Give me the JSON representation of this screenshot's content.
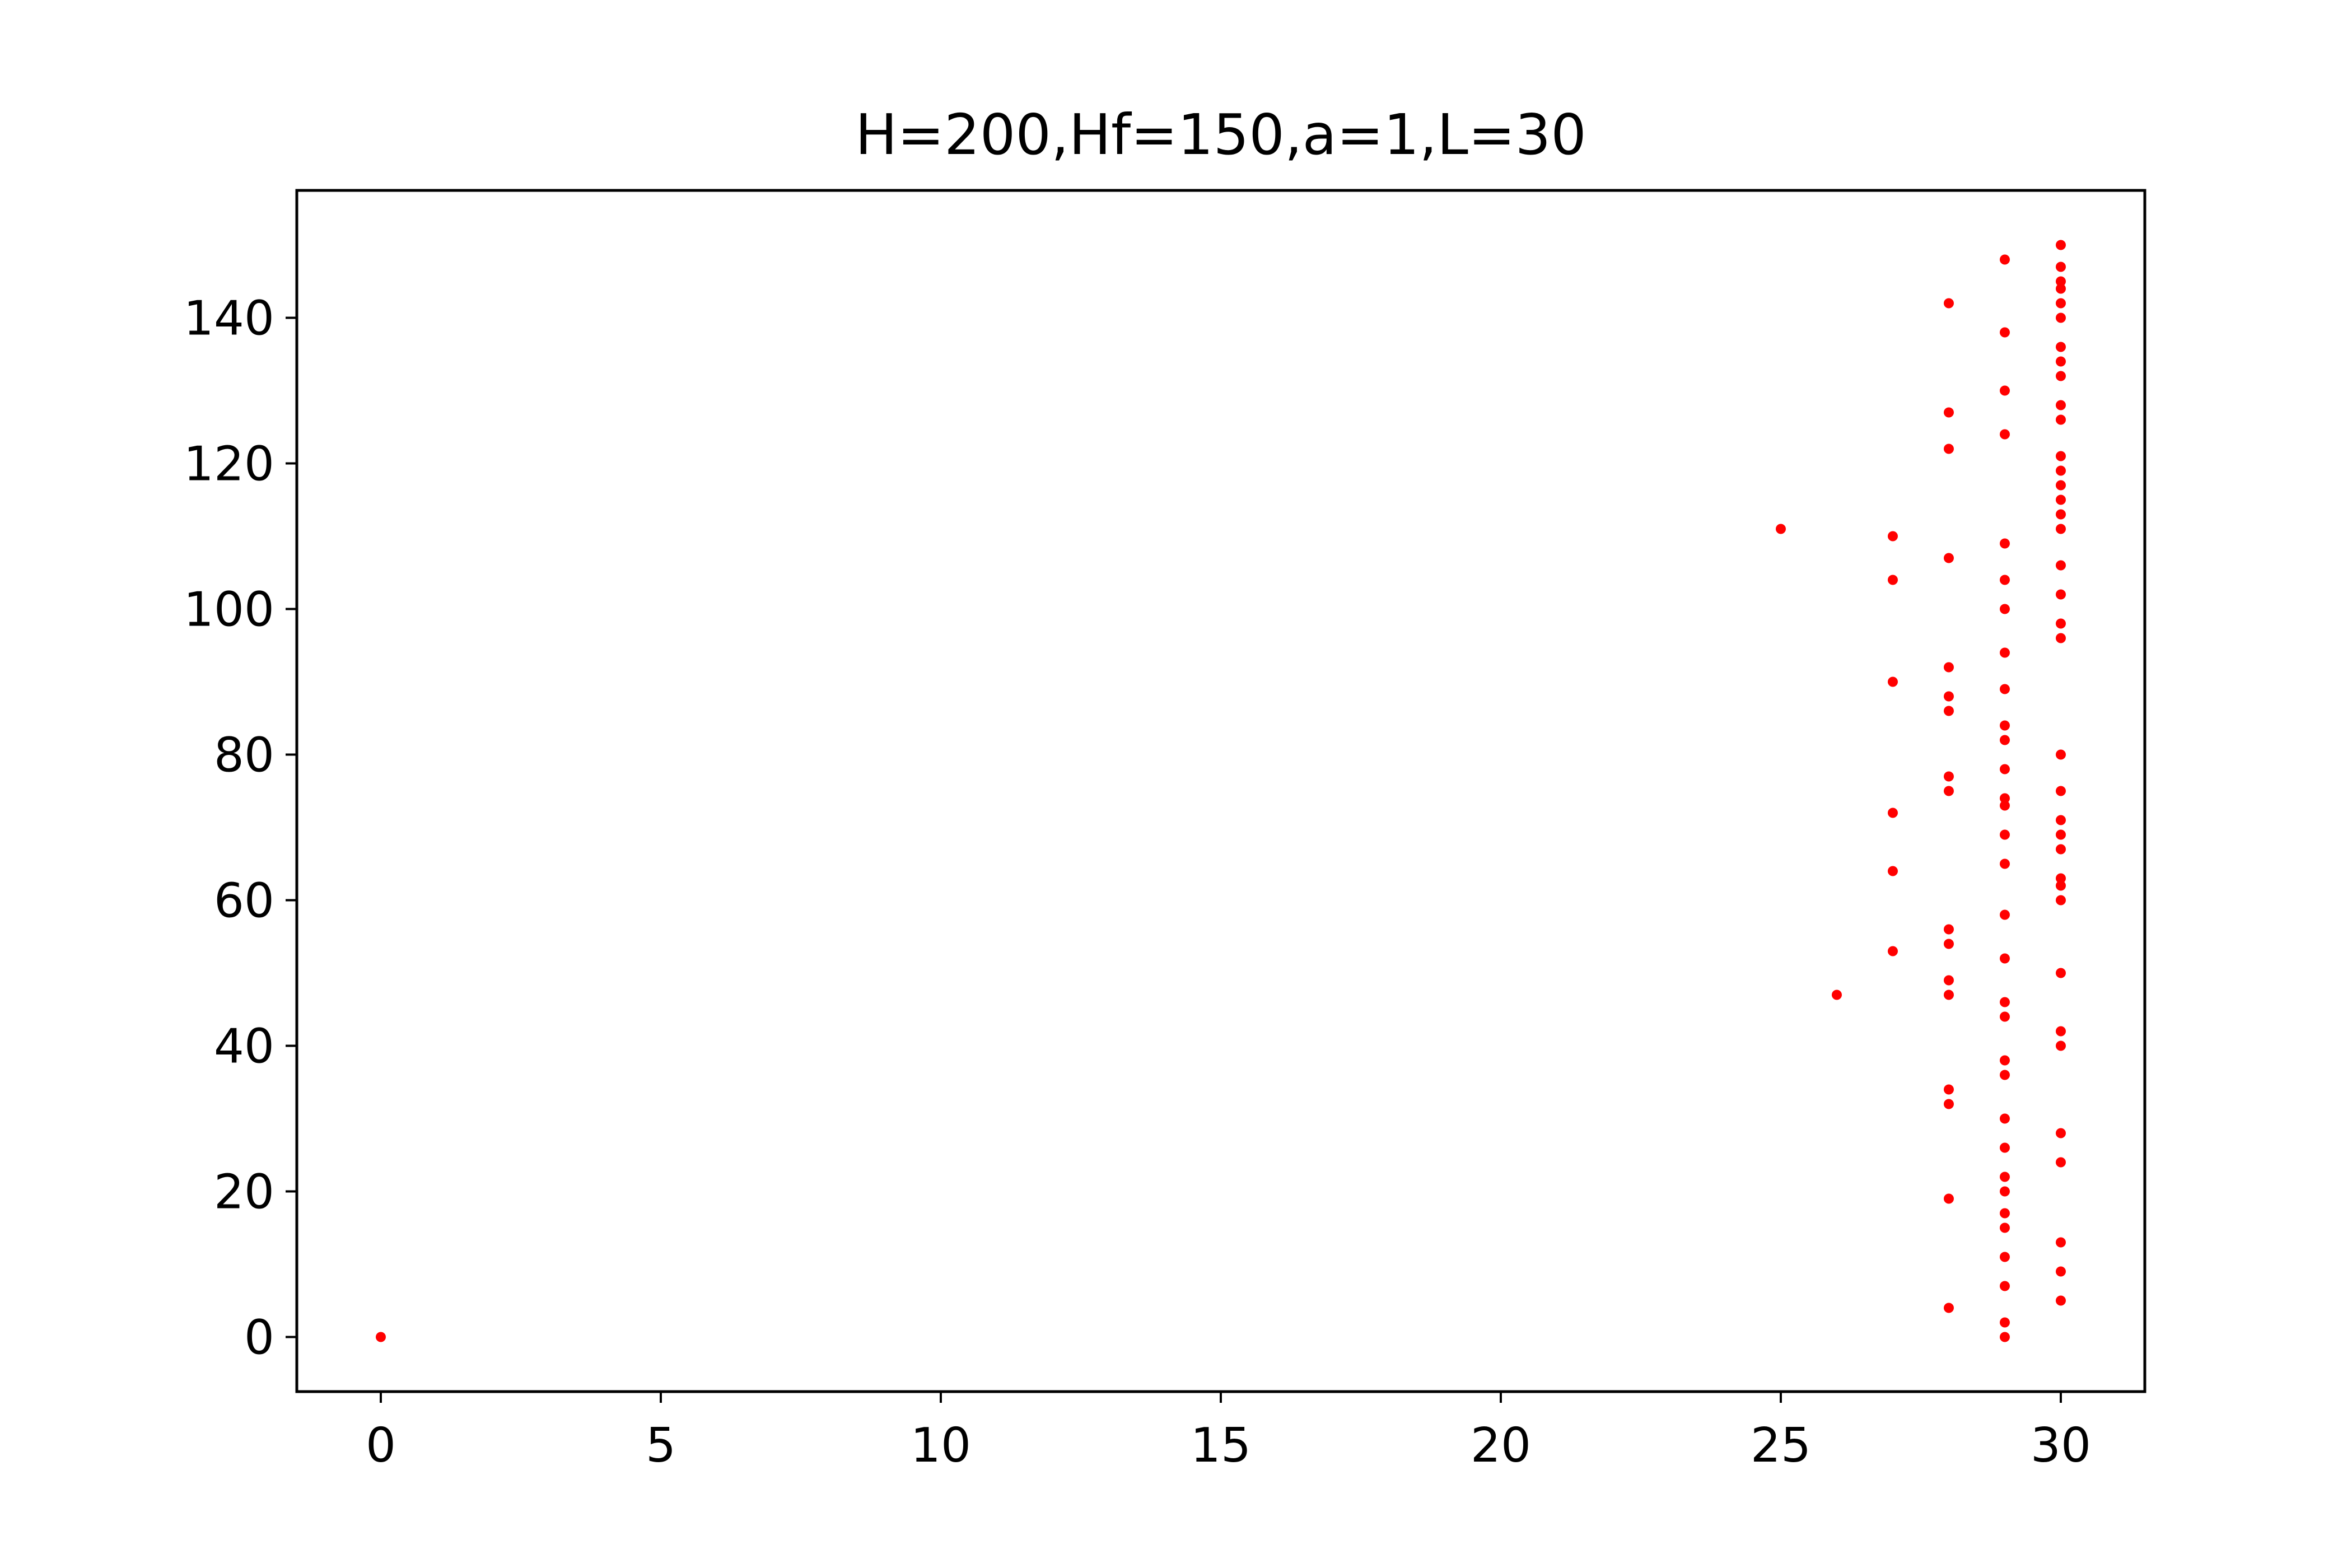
{
  "chart_data": {
    "type": "scatter",
    "title": "H=200,Hf=150,a=1,L=30",
    "xlabel": "",
    "ylabel": "",
    "xlim": [
      -1.5,
      31.5
    ],
    "ylim": [
      -7.5,
      157.5
    ],
    "xticks": [
      0,
      5,
      10,
      15,
      20,
      25,
      30
    ],
    "yticks": [
      0,
      20,
      40,
      60,
      80,
      100,
      120,
      140
    ],
    "grid": false,
    "marker_color": "#ff0000",
    "series": [
      {
        "points": [
          [
            0,
            0
          ],
          [
            25,
            111
          ],
          [
            26,
            47
          ],
          [
            27,
            110
          ],
          [
            27,
            104
          ],
          [
            27,
            90
          ],
          [
            27,
            72
          ],
          [
            27,
            64
          ],
          [
            27,
            53
          ],
          [
            28,
            142
          ],
          [
            28,
            127
          ],
          [
            28,
            122
          ],
          [
            28,
            107
          ],
          [
            28,
            92
          ],
          [
            28,
            88
          ],
          [
            28,
            86
          ],
          [
            28,
            77
          ],
          [
            28,
            75
          ],
          [
            28,
            56
          ],
          [
            28,
            54
          ],
          [
            28,
            49
          ],
          [
            28,
            47
          ],
          [
            28,
            34
          ],
          [
            28,
            32
          ],
          [
            28,
            19
          ],
          [
            28,
            4
          ],
          [
            29,
            148
          ],
          [
            29,
            138
          ],
          [
            29,
            130
          ],
          [
            29,
            124
          ],
          [
            29,
            109
          ],
          [
            29,
            104
          ],
          [
            29,
            100
          ],
          [
            29,
            94
          ],
          [
            29,
            89
          ],
          [
            29,
            84
          ],
          [
            29,
            82
          ],
          [
            29,
            78
          ],
          [
            29,
            74
          ],
          [
            29,
            73
          ],
          [
            29,
            69
          ],
          [
            29,
            65
          ],
          [
            29,
            58
          ],
          [
            29,
            52
          ],
          [
            29,
            46
          ],
          [
            29,
            44
          ],
          [
            29,
            38
          ],
          [
            29,
            36
          ],
          [
            29,
            30
          ],
          [
            29,
            26
          ],
          [
            29,
            22
          ],
          [
            29,
            20
          ],
          [
            29,
            17
          ],
          [
            29,
            15
          ],
          [
            29,
            11
          ],
          [
            29,
            7
          ],
          [
            29,
            2
          ],
          [
            29,
            0
          ],
          [
            30,
            150
          ],
          [
            30,
            147
          ],
          [
            30,
            145
          ],
          [
            30,
            144
          ],
          [
            30,
            142
          ],
          [
            30,
            140
          ],
          [
            30,
            136
          ],
          [
            30,
            134
          ],
          [
            30,
            132
          ],
          [
            30,
            128
          ],
          [
            30,
            126
          ],
          [
            30,
            121
          ],
          [
            30,
            119
          ],
          [
            30,
            117
          ],
          [
            30,
            115
          ],
          [
            30,
            113
          ],
          [
            30,
            111
          ],
          [
            30,
            106
          ],
          [
            30,
            102
          ],
          [
            30,
            98
          ],
          [
            30,
            96
          ],
          [
            30,
            80
          ],
          [
            30,
            75
          ],
          [
            30,
            71
          ],
          [
            30,
            69
          ],
          [
            30,
            67
          ],
          [
            30,
            63
          ],
          [
            30,
            62
          ],
          [
            30,
            60
          ],
          [
            30,
            50
          ],
          [
            30,
            42
          ],
          [
            30,
            40
          ],
          [
            30,
            28
          ],
          [
            30,
            24
          ],
          [
            30,
            13
          ],
          [
            30,
            9
          ],
          [
            30,
            5
          ]
        ]
      }
    ]
  }
}
